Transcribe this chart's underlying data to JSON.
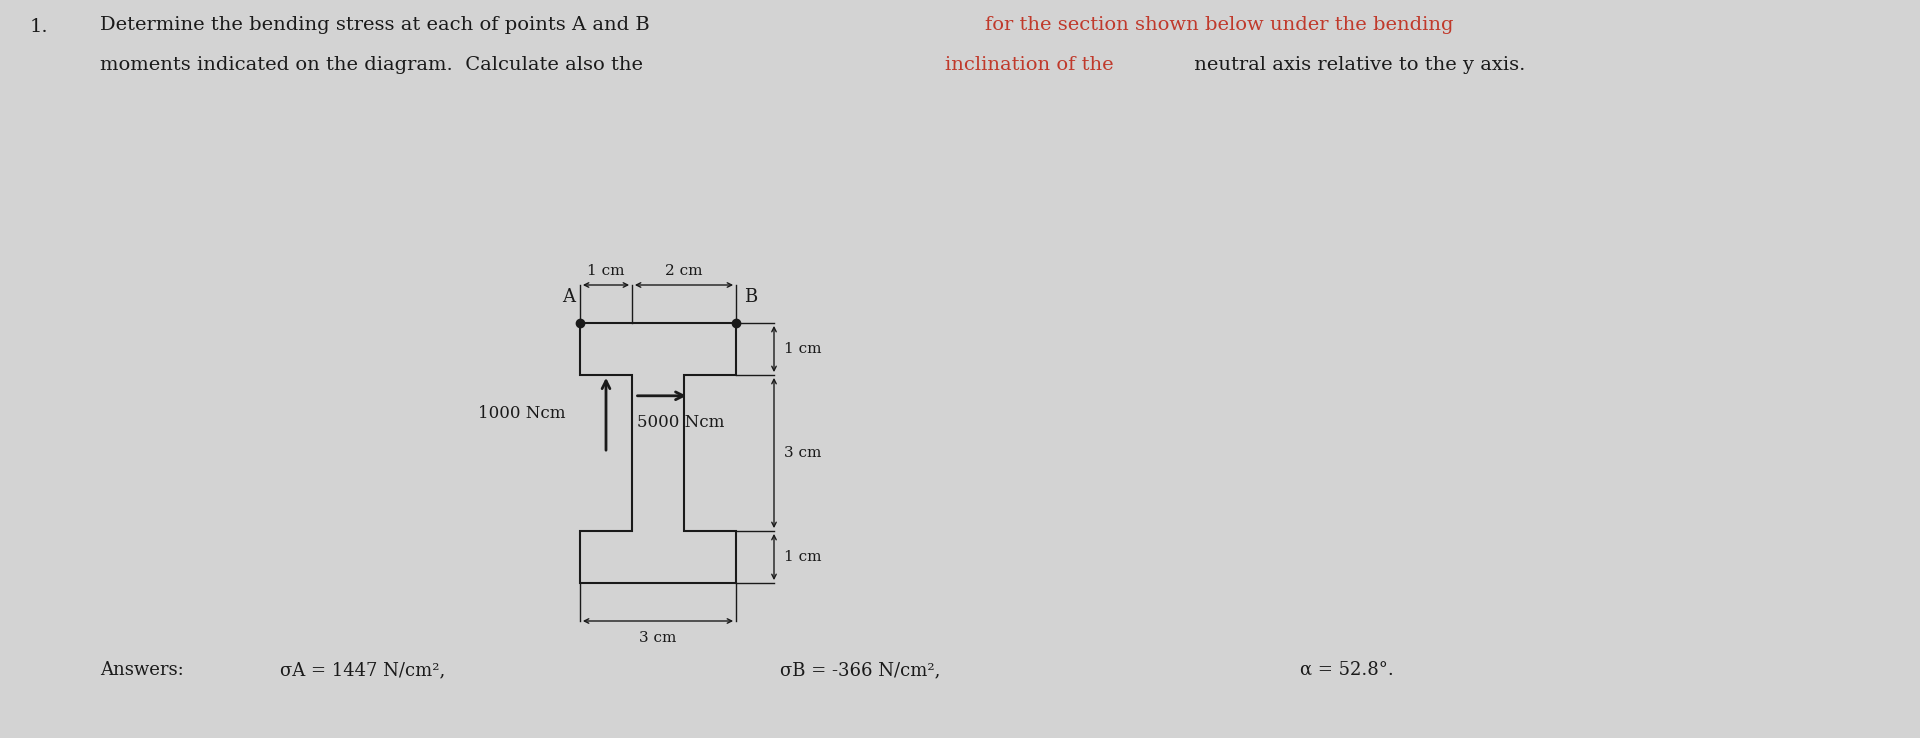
{
  "bg_color": "#d3d3d3",
  "text_color": "#1a1a1a",
  "highlight_color": "#c0392b",
  "line_color": "#1a1a1a",
  "problem_number": "1.",
  "answers_label": "Answers:",
  "answer_A": "σA = 1447 N/cm²,",
  "answer_B": "σB = -366 N/cm²,",
  "answer_alpha": "α = 52.8°.",
  "dim_1cm_top_left": "1 cm",
  "dim_2cm_top_right": "2 cm",
  "dim_1cm_right_top": "1 cm",
  "dim_3cm_right_mid": "3 cm",
  "dim_1cm_right_bot": "1 cm",
  "dim_3cm_bottom": "3 cm",
  "label_A": "A",
  "label_B": "B",
  "label_1000Ncm": "1000 Ncm",
  "label_5000Ncm": "5000 Ncm",
  "figwidth": 19.2,
  "figheight": 7.38,
  "dpi": 100
}
